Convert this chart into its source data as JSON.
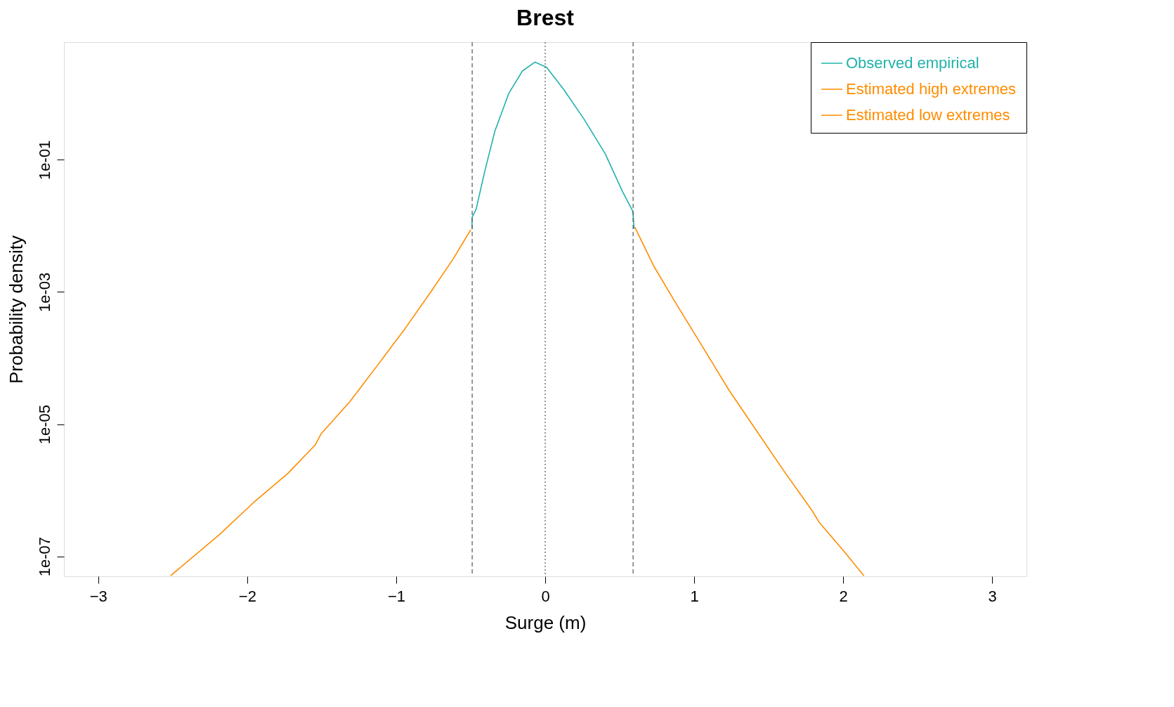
{
  "chart_data": {
    "type": "line",
    "title": "Brest",
    "xlabel": "Surge (m)",
    "ylabel": "Probability density",
    "log": "y",
    "grid": false,
    "legend": "top right",
    "line_style": "solid",
    "marker": "none",
    "xlim": [
      -3.23,
      3.23
    ],
    "xticks": [
      -3,
      -2,
      -1,
      0,
      1,
      2,
      3
    ],
    "ylim": [
      5e-08,
      6
    ],
    "yticks": [
      {
        "value": 1e-07,
        "label": "1e-07"
      },
      {
        "value": 1e-05,
        "label": "1e-05"
      },
      {
        "value": 0.001,
        "label": "1e-03"
      },
      {
        "value": 0.1,
        "label": "1e-01"
      }
    ],
    "series": [
      {
        "name": "Observed empirical",
        "color": "#20b2aa",
        "x": [
          -0.491,
          -0.491,
          -0.463,
          -0.407,
          -0.338,
          -0.245,
          -0.153,
          -0.069,
          0.009,
          0.125,
          0.264,
          0.403,
          0.519,
          0.588,
          0.597
        ],
        "values": [
          0.009,
          0.0133,
          0.018,
          0.065,
          0.27,
          1.0,
          2.2,
          3.0,
          2.5,
          1.15,
          0.4,
          0.123,
          0.033,
          0.0166,
          0.009
        ]
      },
      {
        "name": "Estimated high extremes",
        "color": "#ff8c00",
        "x": [
          0.602,
          0.727,
          0.866,
          1.051,
          1.236,
          1.421,
          1.606,
          1.792,
          1.838,
          2.023,
          2.139
        ],
        "values": [
          0.0095,
          0.0025,
          0.00074,
          0.000155,
          3.2e-05,
          7.8e-06,
          1.9e-06,
          4.9e-07,
          3.3e-07,
          1.07e-07,
          5.1e-08
        ]
      },
      {
        "name": "Estimated low extremes",
        "color": "#ff8c00",
        "x": [
          -2.514,
          -2.19,
          -1.958,
          -1.727,
          -1.542,
          -1.505,
          -1.31,
          -1.125,
          -0.94,
          -0.755,
          -0.616,
          -0.5
        ],
        "values": [
          5.1e-08,
          2.1e-07,
          6.5e-07,
          1.8e-06,
          4.9e-06,
          7.1e-06,
          2.2e-05,
          7.8e-05,
          0.00028,
          0.0011,
          0.0032,
          0.0087
        ]
      }
    ],
    "ref_lines": [
      {
        "axis": "x",
        "value": -0.49,
        "line_style": "dashed",
        "color": "#555555"
      },
      {
        "axis": "x",
        "value": 0,
        "line_style": "dotted",
        "color": "#555555"
      },
      {
        "axis": "x",
        "value": 0.59,
        "line_style": "dashed",
        "color": "#555555"
      }
    ]
  }
}
